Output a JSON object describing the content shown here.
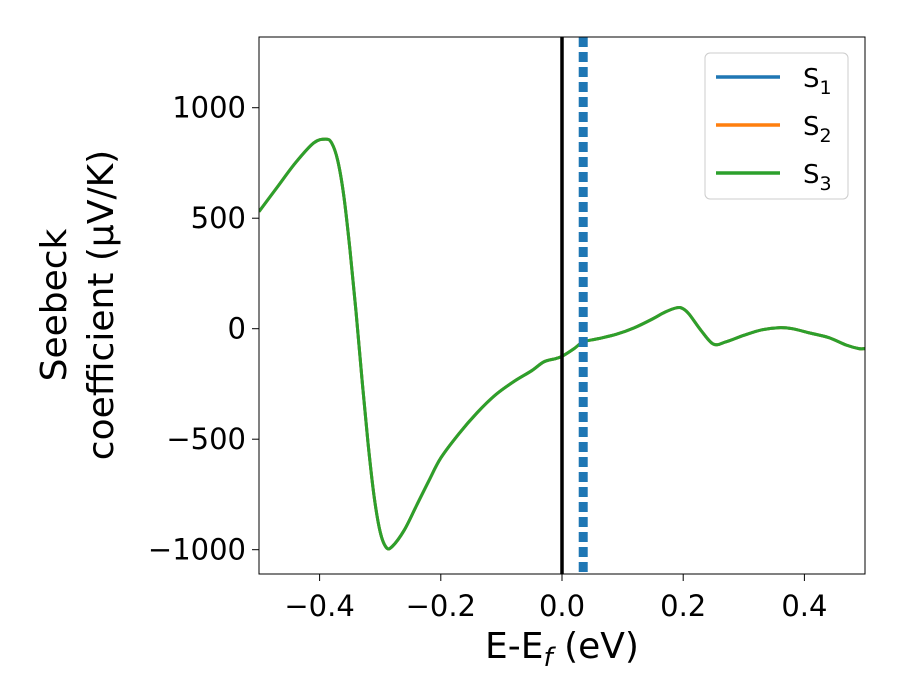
{
  "chart_data": {
    "type": "line",
    "xlabel": "E-E_f (eV)",
    "xlabel_main": "E-E",
    "xlabel_sub": "f",
    "xlabel_unit": " (eV)",
    "ylabel_line1": "Seebeck",
    "ylabel_line2": "coefficient  (μV/K)",
    "xlim": [
      -0.5,
      0.5
    ],
    "ylim": [
      -1110,
      1320
    ],
    "xticks": [
      -0.4,
      -0.2,
      0.0,
      0.2,
      0.4
    ],
    "xtick_labels": [
      "−0.4",
      "−0.2",
      "0.0",
      "0.2",
      "0.4"
    ],
    "yticks": [
      -1000,
      -500,
      0,
      500,
      1000
    ],
    "ytick_labels": [
      "−1000",
      "−500",
      "0",
      "500",
      "1000"
    ],
    "grid": false,
    "legend_position": "upper-right",
    "vertical_lines": [
      {
        "x": 0.0,
        "style": "solid",
        "color": "#000000"
      },
      {
        "x": 0.035,
        "style": "dashed",
        "color": "#1f77b4"
      }
    ],
    "series": [
      {
        "name": "S1",
        "label_main": "S",
        "label_sub": "1",
        "color": "#1f77b4",
        "x": [
          -0.5,
          -0.47,
          -0.44,
          -0.41,
          -0.39,
          -0.38,
          -0.37,
          -0.36,
          -0.35,
          -0.34,
          -0.33,
          -0.32,
          -0.31,
          -0.3,
          -0.29,
          -0.28,
          -0.26,
          -0.24,
          -0.22,
          -0.2,
          -0.17,
          -0.14,
          -0.11,
          -0.08,
          -0.05,
          -0.03,
          -0.01,
          0.0,
          0.02,
          0.035,
          0.06,
          0.09,
          0.12,
          0.15,
          0.17,
          0.19,
          0.2,
          0.21,
          0.23,
          0.25,
          0.27,
          0.3,
          0.33,
          0.36,
          0.38,
          0.41,
          0.44,
          0.47,
          0.49,
          0.5
        ],
        "y": [
          530,
          640,
          750,
          840,
          858,
          840,
          760,
          600,
          360,
          80,
          -230,
          -520,
          -760,
          -920,
          -990,
          -985,
          -910,
          -800,
          -690,
          -585,
          -475,
          -380,
          -300,
          -240,
          -190,
          -150,
          -135,
          -125,
          -90,
          -60,
          -45,
          -25,
          5,
          45,
          75,
          95,
          90,
          65,
          -10,
          -70,
          -60,
          -30,
          -5,
          5,
          0,
          -20,
          -40,
          -75,
          -90,
          -90
        ]
      },
      {
        "name": "S2",
        "label_main": "S",
        "label_sub": "2",
        "color": "#ff7f0e",
        "x": [
          -0.5,
          -0.47,
          -0.44,
          -0.41,
          -0.39,
          -0.38,
          -0.37,
          -0.36,
          -0.35,
          -0.34,
          -0.33,
          -0.32,
          -0.31,
          -0.3,
          -0.29,
          -0.28,
          -0.26,
          -0.24,
          -0.22,
          -0.2,
          -0.17,
          -0.14,
          -0.11,
          -0.08,
          -0.05,
          -0.03,
          -0.01,
          0.0,
          0.02,
          0.035,
          0.06,
          0.09,
          0.12,
          0.15,
          0.17,
          0.19,
          0.2,
          0.21,
          0.23,
          0.25,
          0.27,
          0.3,
          0.33,
          0.36,
          0.38,
          0.41,
          0.44,
          0.47,
          0.49,
          0.5
        ],
        "y": [
          530,
          640,
          750,
          840,
          858,
          840,
          760,
          600,
          360,
          80,
          -230,
          -520,
          -760,
          -920,
          -990,
          -985,
          -910,
          -800,
          -690,
          -585,
          -475,
          -380,
          -300,
          -240,
          -190,
          -150,
          -135,
          -125,
          -90,
          -60,
          -45,
          -25,
          5,
          45,
          75,
          95,
          90,
          65,
          -10,
          -70,
          -60,
          -30,
          -5,
          5,
          0,
          -20,
          -40,
          -75,
          -90,
          -90
        ]
      },
      {
        "name": "S3",
        "label_main": "S",
        "label_sub": "3",
        "color": "#2ca02c",
        "x": [
          -0.5,
          -0.47,
          -0.44,
          -0.41,
          -0.39,
          -0.38,
          -0.37,
          -0.36,
          -0.35,
          -0.34,
          -0.33,
          -0.32,
          -0.31,
          -0.3,
          -0.29,
          -0.28,
          -0.26,
          -0.24,
          -0.22,
          -0.2,
          -0.17,
          -0.14,
          -0.11,
          -0.08,
          -0.05,
          -0.03,
          -0.01,
          0.0,
          0.02,
          0.035,
          0.06,
          0.09,
          0.12,
          0.15,
          0.17,
          0.19,
          0.2,
          0.21,
          0.23,
          0.25,
          0.27,
          0.3,
          0.33,
          0.36,
          0.38,
          0.41,
          0.44,
          0.47,
          0.49,
          0.5
        ],
        "y": [
          530,
          640,
          750,
          840,
          858,
          840,
          760,
          600,
          360,
          80,
          -230,
          -520,
          -760,
          -920,
          -990,
          -985,
          -910,
          -800,
          -690,
          -585,
          -475,
          -380,
          -300,
          -240,
          -190,
          -150,
          -135,
          -125,
          -90,
          -60,
          -45,
          -25,
          5,
          45,
          75,
          95,
          90,
          65,
          -10,
          -70,
          -60,
          -30,
          -5,
          5,
          0,
          -20,
          -40,
          -75,
          -90,
          -90
        ]
      }
    ]
  }
}
